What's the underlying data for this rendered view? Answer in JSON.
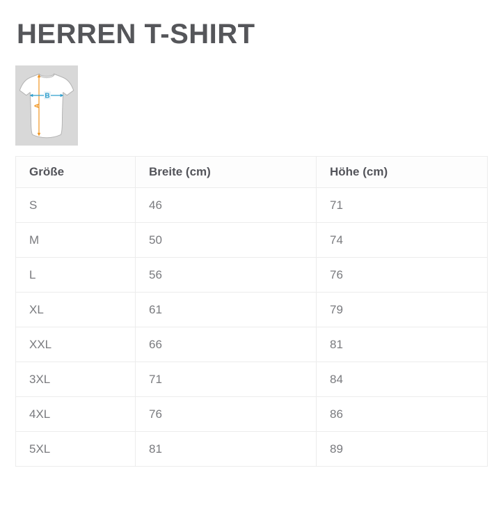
{
  "page": {
    "title": "HERREN T-SHIRT"
  },
  "diagram": {
    "description": "tshirt-measurement-diagram",
    "height_label": "A",
    "width_label": "B"
  },
  "size_table": {
    "headers": [
      "Größe",
      "Breite (cm)",
      "Höhe (cm)"
    ],
    "rows": [
      [
        "S",
        "46",
        "71"
      ],
      [
        "M",
        "50",
        "74"
      ],
      [
        "L",
        "56",
        "76"
      ],
      [
        "XL",
        "61",
        "79"
      ],
      [
        "XXL",
        "66",
        "81"
      ],
      [
        "3XL",
        "71",
        "84"
      ],
      [
        "4XL",
        "76",
        "86"
      ],
      [
        "5XL",
        "81",
        "89"
      ]
    ]
  },
  "colors": {
    "title_text": "#55565a",
    "header_text": "#53545a",
    "body_text": "#797a7e",
    "table_border": "#ececec",
    "diagram_background": "#d8d8d8",
    "shirt_fill": "#ffffff",
    "shirt_outline": "#b3b3b3",
    "height_arrow": "#f0941f",
    "width_arrow": "#2f9fcd",
    "width_label_box": "#e9f3f8"
  }
}
